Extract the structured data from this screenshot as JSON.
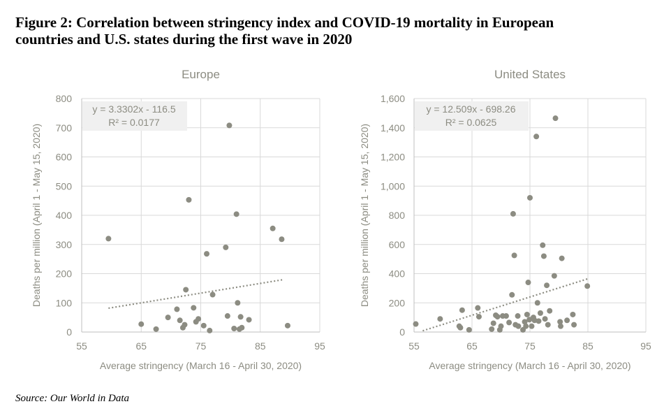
{
  "figure": {
    "title_line1": "Figure 2: Correlation between stringency index and COVID-19 mortality in European",
    "title_line2": "countries and U.S. states during the first wave in 2020",
    "source": "Source: Our World in Data"
  },
  "chart_data": [
    {
      "type": "scatter",
      "title": "Europe",
      "xlabel": "Average stringency (March 16 - April 30, 2020)",
      "ylabel": "Deaths per million (April 1 - May 15, 2020)",
      "xlim": [
        55,
        95
      ],
      "ylim": [
        0,
        800
      ],
      "xticks": [
        55,
        65,
        75,
        85,
        95
      ],
      "yticks": [
        0,
        100,
        200,
        300,
        400,
        500,
        600,
        700,
        800
      ],
      "ytick_labels": [
        "0",
        "100",
        "200",
        "300",
        "400",
        "500",
        "600",
        "700",
        "800"
      ],
      "trendline": {
        "slope": 3.3302,
        "intercept": -116.5,
        "x_range": [
          59.5,
          89
        ]
      },
      "equation": "y = 3.3302x - 116.5",
      "r2": "R² = 0.0177",
      "colors": {
        "points": "#8c8c82",
        "trend": "#8c8c82",
        "grid": "#d9d9d9"
      },
      "points": [
        [
          59.5,
          320
        ],
        [
          65,
          27
        ],
        [
          67.5,
          10
        ],
        [
          69.5,
          50
        ],
        [
          71,
          78
        ],
        [
          71.5,
          40
        ],
        [
          72,
          15
        ],
        [
          72.3,
          25
        ],
        [
          72.5,
          145
        ],
        [
          73,
          453
        ],
        [
          73.8,
          83
        ],
        [
          74.2,
          35
        ],
        [
          74.6,
          45
        ],
        [
          75.5,
          22
        ],
        [
          76,
          268
        ],
        [
          76.5,
          5
        ],
        [
          77,
          128
        ],
        [
          79.2,
          290
        ],
        [
          79.5,
          55
        ],
        [
          79.8,
          708
        ],
        [
          80.6,
          12
        ],
        [
          81,
          404
        ],
        [
          81.2,
          100
        ],
        [
          81.5,
          10
        ],
        [
          81.9,
          15
        ],
        [
          81.7,
          52
        ],
        [
          83.1,
          42
        ],
        [
          87.1,
          355
        ],
        [
          88.6,
          318
        ],
        [
          89.6,
          22
        ]
      ]
    },
    {
      "type": "scatter",
      "title": "United States",
      "xlabel": "Average stringency (March 16 - April 30, 2020)",
      "ylabel": "Deaths per million (April 1 - May 15, 2020)",
      "xlim": [
        55,
        95
      ],
      "ylim": [
        0,
        1600
      ],
      "xticks": [
        55,
        65,
        75,
        85,
        95
      ],
      "yticks": [
        0,
        200,
        400,
        600,
        800,
        1000,
        1200,
        1400,
        1600
      ],
      "ytick_labels": [
        "0",
        "200",
        "400",
        "600",
        "800",
        "1,000",
        "1,200",
        "1,400",
        "1,600"
      ],
      "trendline": {
        "slope": 12.509,
        "intercept": -698.26,
        "x_range": [
          56.5,
          85
        ]
      },
      "equation": "y = 12.509x - 698.26",
      "r2": "R² = 0.0625",
      "colors": {
        "points": "#8c8c82",
        "trend": "#8c8c82",
        "grid": "#d9d9d9"
      },
      "points": [
        [
          55.3,
          55
        ],
        [
          59.5,
          90
        ],
        [
          62.8,
          40
        ],
        [
          63,
          30
        ],
        [
          63.3,
          150
        ],
        [
          64.5,
          15
        ],
        [
          66,
          165
        ],
        [
          66.2,
          105
        ],
        [
          68.4,
          20
        ],
        [
          68.7,
          60
        ],
        [
          69.1,
          115
        ],
        [
          69.4,
          105
        ],
        [
          69.8,
          15
        ],
        [
          70,
          40
        ],
        [
          70.3,
          110
        ],
        [
          70.9,
          110
        ],
        [
          71.4,
          65
        ],
        [
          71.9,
          255
        ],
        [
          72.1,
          810
        ],
        [
          72.3,
          525
        ],
        [
          72.5,
          50
        ],
        [
          72.9,
          110
        ],
        [
          73,
          40
        ],
        [
          73.8,
          15
        ],
        [
          74.1,
          70
        ],
        [
          74.3,
          40
        ],
        [
          74.5,
          120
        ],
        [
          74.7,
          340
        ],
        [
          74.9,
          85
        ],
        [
          75,
          920
        ],
        [
          75.3,
          40
        ],
        [
          75.6,
          100
        ],
        [
          75.8,
          80
        ],
        [
          76.1,
          1340
        ],
        [
          76.3,
          200
        ],
        [
          76.5,
          75
        ],
        [
          76.8,
          130
        ],
        [
          77.2,
          595
        ],
        [
          77.4,
          520
        ],
        [
          77.6,
          90
        ],
        [
          77.9,
          320
        ],
        [
          78.1,
          50
        ],
        [
          78.4,
          145
        ],
        [
          79.2,
          385
        ],
        [
          79.4,
          1465
        ],
        [
          80.2,
          70
        ],
        [
          80.5,
          505
        ],
        [
          81.4,
          80
        ],
        [
          82.4,
          120
        ],
        [
          82.6,
          50
        ],
        [
          84.9,
          315
        ],
        [
          80.3,
          40
        ]
      ]
    }
  ]
}
